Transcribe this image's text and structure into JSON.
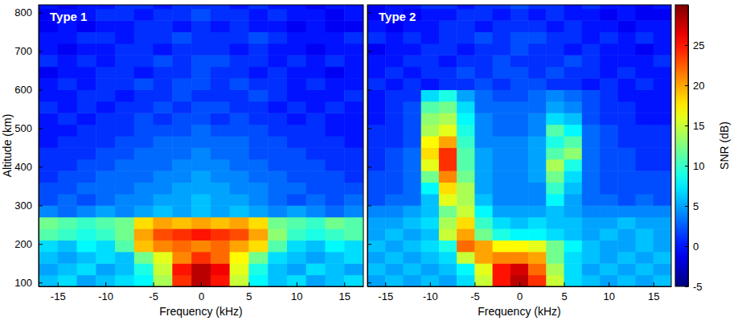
{
  "chart_data": [
    {
      "type": "heatmap",
      "title": "Type 1",
      "xlabel": "Frequency (kHz)",
      "ylabel": "Altitude (km)",
      "xlim": [
        -17,
        17
      ],
      "xticks": [
        -15,
        -10,
        -5,
        0,
        5,
        10,
        15
      ],
      "ylim": [
        90,
        820
      ],
      "yticks": [
        100,
        200,
        300,
        400,
        500,
        600,
        700,
        800
      ],
      "x_edges": [
        -17,
        -15,
        -13,
        -11,
        -9,
        -7,
        -5,
        -3,
        -1,
        1,
        3,
        5,
        7,
        9,
        11,
        13,
        15,
        17
      ],
      "y_edges": [
        90,
        120,
        150,
        180,
        210,
        240,
        270,
        300,
        330,
        360,
        390,
        420,
        450,
        480,
        510,
        540,
        570,
        600,
        630,
        660,
        690,
        720,
        750,
        780,
        810,
        820
      ],
      "z": [
        [
          6,
          7,
          5,
          6,
          7,
          8,
          14,
          24,
          28,
          25,
          15,
          8,
          6,
          7,
          5,
          6,
          7
        ],
        [
          5,
          6,
          7,
          5,
          6,
          9,
          15,
          25,
          28,
          26,
          16,
          9,
          6,
          5,
          7,
          6,
          5
        ],
        [
          6,
          5,
          6,
          7,
          6,
          12,
          16,
          21,
          24,
          22,
          17,
          12,
          7,
          6,
          5,
          6,
          7
        ],
        [
          7,
          6,
          8,
          7,
          11,
          19,
          21,
          22,
          21,
          22,
          20,
          18,
          11,
          7,
          6,
          8,
          7
        ],
        [
          11,
          10,
          9,
          10,
          12,
          20,
          23,
          24,
          25,
          24,
          23,
          20,
          13,
          10,
          9,
          10,
          11
        ],
        [
          12,
          11,
          10,
          11,
          12,
          18,
          20,
          19,
          20,
          19,
          20,
          18,
          12,
          11,
          10,
          12,
          11
        ],
        [
          4,
          3,
          4,
          5,
          4,
          5,
          6,
          5,
          6,
          5,
          6,
          5,
          4,
          5,
          4,
          3,
          4
        ],
        [
          2,
          3,
          2,
          3,
          4,
          4,
          5,
          5,
          6,
          5,
          5,
          4,
          3,
          2,
          3,
          2,
          3
        ],
        [
          2,
          2,
          3,
          3,
          3,
          4,
          4,
          5,
          5,
          5,
          4,
          4,
          3,
          3,
          2,
          2,
          2
        ],
        [
          1,
          2,
          2,
          3,
          3,
          3,
          4,
          4,
          5,
          4,
          4,
          3,
          3,
          2,
          2,
          2,
          1
        ],
        [
          1,
          1,
          2,
          2,
          3,
          3,
          3,
          4,
          4,
          4,
          3,
          3,
          2,
          2,
          2,
          1,
          1
        ],
        [
          1,
          1,
          1,
          2,
          2,
          3,
          3,
          3,
          4,
          3,
          3,
          2,
          2,
          2,
          1,
          1,
          1
        ],
        [
          0,
          1,
          1,
          1,
          2,
          2,
          3,
          3,
          3,
          3,
          3,
          2,
          2,
          1,
          1,
          1,
          0
        ],
        [
          0,
          0,
          1,
          1,
          1,
          2,
          2,
          2,
          3,
          2,
          2,
          2,
          1,
          1,
          1,
          0,
          0
        ],
        [
          0,
          1,
          0,
          1,
          1,
          2,
          1,
          2,
          2,
          1,
          2,
          1,
          1,
          0,
          1,
          0,
          0
        ],
        [
          1,
          0,
          1,
          0,
          1,
          1,
          2,
          1,
          2,
          2,
          1,
          1,
          0,
          1,
          0,
          1,
          0
        ],
        [
          0,
          0,
          1,
          1,
          0,
          1,
          1,
          2,
          1,
          1,
          1,
          2,
          1,
          0,
          0,
          0,
          1
        ],
        [
          0,
          1,
          0,
          1,
          1,
          2,
          1,
          2,
          2,
          1,
          2,
          1,
          1,
          0,
          1,
          0,
          0
        ],
        [
          -1,
          0,
          0,
          1,
          1,
          0,
          1,
          1,
          2,
          1,
          1,
          0,
          1,
          0,
          0,
          -1,
          0
        ],
        [
          1,
          0,
          1,
          0,
          1,
          1,
          2,
          1,
          2,
          2,
          1,
          1,
          0,
          1,
          0,
          1,
          0
        ],
        [
          0,
          -1,
          0,
          0,
          1,
          1,
          0,
          1,
          1,
          1,
          0,
          1,
          0,
          0,
          -1,
          0,
          0
        ],
        [
          0,
          0,
          1,
          1,
          0,
          1,
          1,
          2,
          1,
          1,
          1,
          2,
          1,
          0,
          0,
          0,
          1
        ],
        [
          -1,
          0,
          -1,
          0,
          0,
          1,
          1,
          0,
          1,
          0,
          1,
          0,
          0,
          -1,
          0,
          -1,
          -1
        ],
        [
          -1,
          0,
          0,
          1,
          1,
          0,
          1,
          1,
          2,
          1,
          1,
          0,
          1,
          0,
          0,
          -1,
          0
        ],
        [
          0,
          -1,
          0,
          0,
          1,
          1,
          0,
          1,
          1,
          1,
          0,
          1,
          0,
          0,
          -1,
          0,
          0
        ]
      ]
    },
    {
      "type": "heatmap",
      "title": "Type 2",
      "xlabel": "Frequency (kHz)",
      "tick_labels": "x",
      "xlim": [
        -17,
        17
      ],
      "xticks": [
        -15,
        -10,
        -5,
        0,
        5,
        10,
        15
      ],
      "ylim": [
        90,
        820
      ],
      "yticks": [
        100,
        200,
        300,
        400,
        500,
        600,
        700,
        800
      ],
      "x_edges": [
        -17,
        -15,
        -13,
        -11,
        -9,
        -7,
        -5,
        -3,
        -1,
        1,
        3,
        5,
        7,
        9,
        11,
        13,
        15,
        17
      ],
      "y_edges": [
        90,
        120,
        150,
        180,
        210,
        240,
        270,
        300,
        330,
        360,
        390,
        420,
        450,
        480,
        510,
        540,
        570,
        600,
        630,
        660,
        690,
        720,
        750,
        780,
        810,
        820
      ],
      "z": [
        [
          5,
          6,
          5,
          6,
          5,
          7,
          15,
          25,
          28,
          24,
          15,
          7,
          6,
          5,
          6,
          5,
          6
        ],
        [
          6,
          5,
          6,
          5,
          6,
          8,
          16,
          25,
          27,
          22,
          14,
          7,
          5,
          6,
          5,
          6,
          5
        ],
        [
          5,
          6,
          5,
          6,
          7,
          15,
          20,
          21,
          21,
          20,
          12,
          7,
          6,
          5,
          6,
          5,
          6
        ],
        [
          6,
          5,
          6,
          7,
          9,
          22,
          20,
          17,
          17,
          16,
          12,
          8,
          6,
          5,
          5,
          6,
          5
        ],
        [
          5,
          6,
          5,
          6,
          15,
          20,
          12,
          9,
          8,
          8,
          7,
          6,
          5,
          6,
          5,
          6,
          5
        ],
        [
          5,
          5,
          6,
          7,
          14,
          18,
          10,
          7,
          6,
          7,
          6,
          6,
          5,
          5,
          6,
          5,
          5
        ],
        [
          4,
          4,
          5,
          6,
          12,
          15,
          8,
          5,
          5,
          5,
          6,
          5,
          4,
          4,
          4,
          4,
          4
        ],
        [
          2,
          3,
          3,
          6,
          16,
          14,
          6,
          4,
          4,
          4,
          8,
          5,
          3,
          3,
          2,
          3,
          2
        ],
        [
          2,
          2,
          3,
          8,
          18,
          14,
          5,
          4,
          4,
          4,
          10,
          6,
          3,
          2,
          2,
          2,
          2
        ],
        [
          2,
          2,
          3,
          12,
          21,
          12,
          5,
          4,
          4,
          5,
          12,
          7,
          3,
          2,
          2,
          2,
          2
        ],
        [
          1,
          2,
          3,
          16,
          24,
          11,
          5,
          4,
          4,
          5,
          14,
          9,
          3,
          2,
          2,
          1,
          1
        ],
        [
          1,
          2,
          3,
          18,
          24,
          11,
          5,
          4,
          4,
          5,
          11,
          13,
          3,
          2,
          2,
          1,
          1
        ],
        [
          1,
          1,
          2,
          17,
          20,
          10,
          4,
          4,
          4,
          5,
          9,
          11,
          3,
          2,
          1,
          1,
          1
        ],
        [
          1,
          1,
          2,
          14,
          16,
          9,
          4,
          3,
          3,
          4,
          11,
          8,
          3,
          2,
          1,
          1,
          1
        ],
        [
          0,
          1,
          2,
          13,
          14,
          8,
          4,
          3,
          3,
          4,
          7,
          6,
          2,
          1,
          1,
          0,
          0
        ],
        [
          0,
          1,
          2,
          11,
          12,
          7,
          3,
          3,
          3,
          3,
          5,
          4,
          2,
          1,
          1,
          0,
          0
        ],
        [
          0,
          1,
          1,
          7,
          9,
          5,
          3,
          2,
          2,
          3,
          4,
          3,
          2,
          1,
          0,
          0,
          0
        ],
        [
          1,
          0,
          1,
          0,
          1,
          1,
          2,
          1,
          2,
          2,
          1,
          1,
          0,
          1,
          0,
          1,
          0
        ],
        [
          0,
          1,
          0,
          1,
          1,
          2,
          1,
          2,
          2,
          1,
          2,
          1,
          1,
          0,
          1,
          0,
          0
        ],
        [
          0,
          0,
          1,
          1,
          0,
          1,
          1,
          2,
          1,
          1,
          1,
          2,
          1,
          0,
          0,
          0,
          1
        ],
        [
          -1,
          0,
          0,
          1,
          1,
          0,
          1,
          1,
          2,
          1,
          1,
          0,
          1,
          0,
          0,
          -1,
          0
        ],
        [
          1,
          0,
          1,
          0,
          1,
          1,
          2,
          1,
          2,
          2,
          1,
          1,
          0,
          1,
          0,
          1,
          0
        ],
        [
          0,
          -1,
          0,
          0,
          1,
          1,
          0,
          1,
          1,
          1,
          0,
          1,
          0,
          0,
          -1,
          0,
          0
        ],
        [
          -1,
          0,
          -1,
          0,
          0,
          1,
          1,
          0,
          1,
          0,
          1,
          0,
          0,
          -1,
          0,
          -1,
          -1
        ],
        [
          -1,
          0,
          0,
          1,
          1,
          0,
          1,
          1,
          2,
          1,
          1,
          0,
          1,
          0,
          0,
          -1,
          0
        ]
      ],
      "colorbar": {
        "label": "SNR (dB)",
        "range": [
          -5,
          30
        ],
        "ticks": [
          -5,
          0,
          5,
          10,
          15,
          20,
          25
        ]
      }
    }
  ]
}
